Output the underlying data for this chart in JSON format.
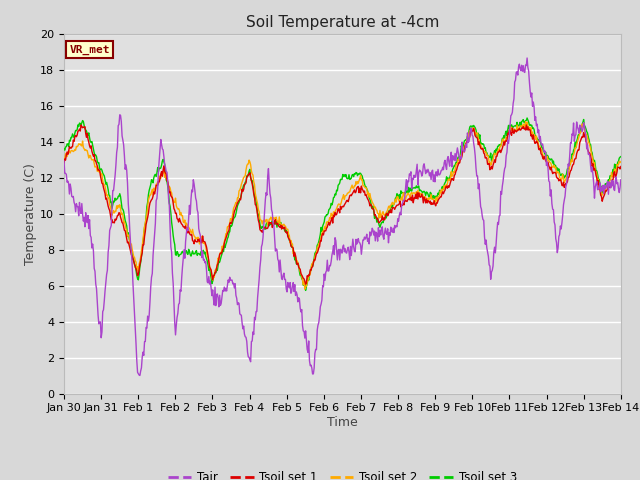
{
  "title": "Soil Temperature at -4cm",
  "xlabel": "Time",
  "ylabel": "Temperature (C)",
  "ylim": [
    0,
    20
  ],
  "bg_color": "#d8d8d8",
  "plot_bg_color": "#e0e0e0",
  "grid_color": "#ffffff",
  "line_colors": {
    "Tair": "#aa44cc",
    "Tsoil_set1": "#dd0000",
    "Tsoil_set2": "#ffaa00",
    "Tsoil_set3": "#00cc00"
  },
  "legend_labels": [
    "Tair",
    "Tsoil set 1",
    "Tsoil set 2",
    "Tsoil set 3"
  ],
  "annotation_text": "VR_met",
  "annotation_color": "#880000",
  "annotation_bg": "#ffffcc",
  "xtick_labels": [
    "Jan 30",
    "Jan 31",
    "Feb 1",
    "Feb 2",
    "Feb 3",
    "Feb 4",
    "Feb 5",
    "Feb 6",
    "Feb 7",
    "Feb 8",
    "Feb 9",
    "Feb 10",
    "Feb 11",
    "Feb 12",
    "Feb 13",
    "Feb 14"
  ],
  "title_fontsize": 11,
  "axis_fontsize": 9,
  "tick_fontsize": 8
}
